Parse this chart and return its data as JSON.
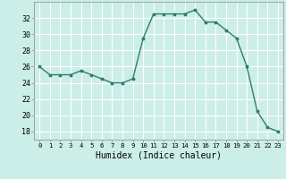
{
  "x": [
    0,
    1,
    2,
    3,
    4,
    5,
    6,
    7,
    8,
    9,
    10,
    11,
    12,
    13,
    14,
    15,
    16,
    17,
    18,
    19,
    20,
    21,
    22,
    23
  ],
  "y": [
    26,
    25,
    25,
    25,
    25.5,
    25,
    24.5,
    24,
    24,
    24.5,
    29.5,
    32.5,
    32.5,
    32.5,
    32.5,
    33,
    31.5,
    31.5,
    30.5,
    29.5,
    26,
    20.5,
    18.5,
    18
  ],
  "line_color": "#2e7d6e",
  "marker": "o",
  "marker_size": 1.8,
  "bg_color": "#cceee8",
  "grid_color": "#ffffff",
  "xlabel": "Humidex (Indice chaleur)",
  "ylim": [
    17,
    34
  ],
  "xlim": [
    -0.5,
    23.5
  ],
  "yticks": [
    18,
    20,
    22,
    24,
    26,
    28,
    30,
    32
  ],
  "xticks": [
    0,
    1,
    2,
    3,
    4,
    5,
    6,
    7,
    8,
    9,
    10,
    11,
    12,
    13,
    14,
    15,
    16,
    17,
    18,
    19,
    20,
    21,
    22,
    23
  ],
  "xlabel_fontsize": 7,
  "tick_fontsize": 6,
  "line_width": 1.0
}
